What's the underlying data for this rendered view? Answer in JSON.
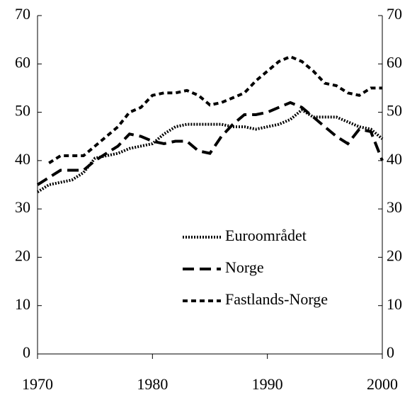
{
  "chart_data": {
    "type": "line",
    "x": [
      1970,
      1971,
      1972,
      1973,
      1974,
      1975,
      1976,
      1977,
      1978,
      1979,
      1980,
      1981,
      1982,
      1983,
      1984,
      1985,
      1986,
      1987,
      1988,
      1989,
      1990,
      1991,
      1992,
      1993,
      1994,
      1995,
      1996,
      1997,
      1998,
      1999,
      2000
    ],
    "series": [
      {
        "name": "Euroområdet",
        "color": "#000000",
        "dash": "2,2",
        "values": [
          33.5,
          35,
          35.5,
          36,
          37.5,
          40.5,
          41,
          41.5,
          42.5,
          43,
          43.5,
          45.5,
          47,
          47.5,
          47.5,
          47.5,
          47.5,
          47,
          47,
          46.5,
          47,
          47.5,
          48.5,
          50.5,
          49,
          49,
          49,
          48,
          47,
          46.5,
          44.5
        ]
      },
      {
        "name": "Norge",
        "color": "#000000",
        "dash": "16,8",
        "values": [
          35,
          36.5,
          38,
          38,
          38,
          40,
          41.5,
          43,
          45.5,
          45,
          44,
          43.5,
          44,
          44,
          42,
          41.5,
          45,
          47.5,
          49.5,
          49.5,
          50,
          51,
          52,
          51,
          49,
          47,
          45,
          43.5,
          46.5,
          46,
          40
        ]
      },
      {
        "name": "Fastlands-Norge",
        "color": "#000000",
        "dash": "7,5",
        "values": [
          null,
          39.5,
          41,
          41,
          41,
          43,
          45,
          47,
          50,
          51,
          53.5,
          54,
          54,
          54.5,
          53.5,
          51.5,
          52,
          53,
          54,
          56.5,
          58.5,
          60.5,
          61.5,
          60.5,
          58.5,
          56,
          55.5,
          54,
          53.5,
          55,
          55
        ]
      }
    ],
    "xlim": [
      1970,
      2000
    ],
    "xticks": [
      1970,
      1980,
      1990,
      2000
    ],
    "ylim": [
      0,
      70
    ],
    "yticks": [
      0,
      10,
      20,
      30,
      40,
      50,
      60,
      70
    ],
    "y2lim": [
      0,
      70
    ],
    "y2ticks": [
      0,
      10,
      20,
      30,
      40,
      50,
      60,
      70
    ],
    "legend": "lower center"
  }
}
